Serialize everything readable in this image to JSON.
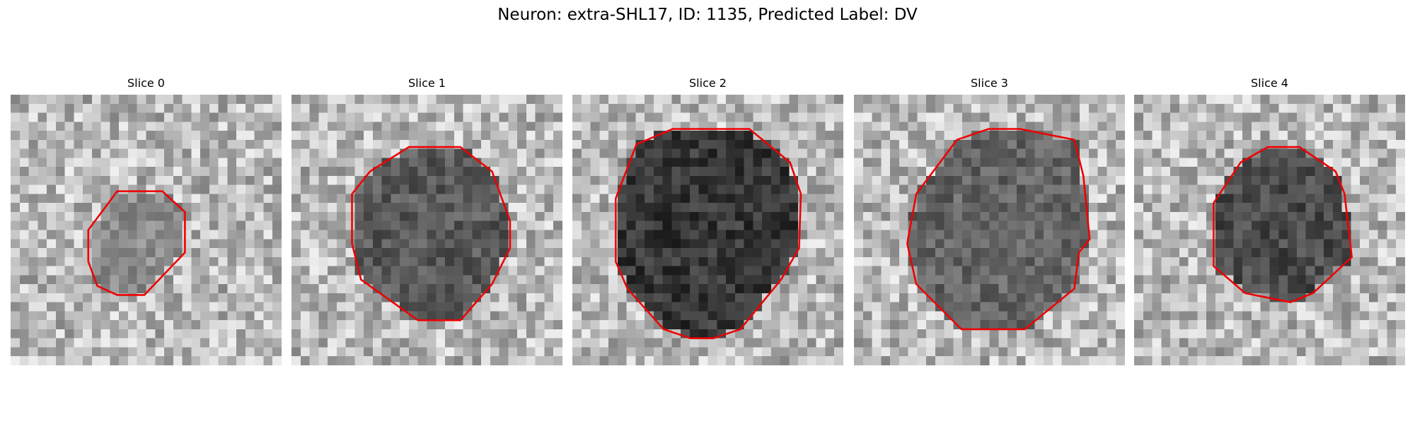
{
  "figure": {
    "title": "Neuron: extra-SHL17, ID: 1135, Predicted Label: DV",
    "panels": [
      {
        "title": "Slice 0"
      },
      {
        "title": "Slice 1"
      },
      {
        "title": "Slice 2"
      },
      {
        "title": "Slice 3"
      },
      {
        "title": "Slice 4"
      }
    ]
  }
}
